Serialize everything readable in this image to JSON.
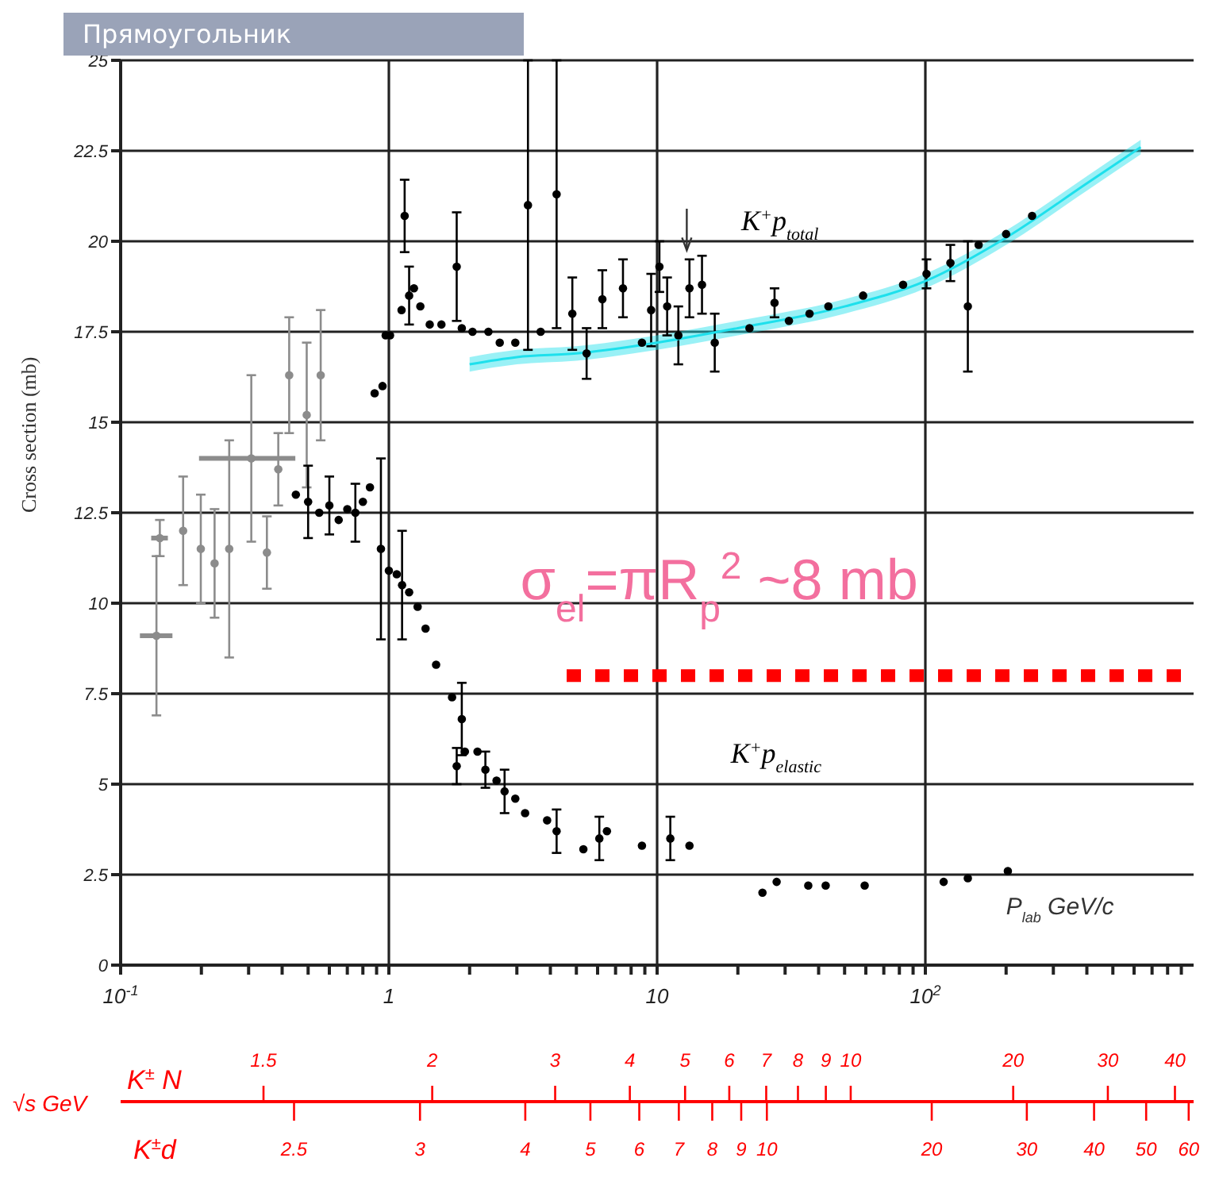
{
  "chart_data": {
    "type": "scatter",
    "ylabel": "Cross section (mb)",
    "xlabel": "P$_{lab}$ GeV/c",
    "log": "x",
    "grid": true,
    "marker": "circle",
    "xlim": [
      0.1,
      1000
    ],
    "ylim": [
      0,
      25
    ],
    "xticks": [
      {
        "value": 0.1,
        "label": "10$^{-1}$"
      },
      {
        "value": 0.2,
        "label": null
      },
      {
        "value": 0.3,
        "label": null
      },
      {
        "value": 0.4,
        "label": null
      },
      {
        "value": 0.5,
        "label": null
      },
      {
        "value": 0.6,
        "label": null
      },
      {
        "value": 0.7,
        "label": null
      },
      {
        "value": 0.8,
        "label": null
      },
      {
        "value": 0.9,
        "label": null
      },
      1,
      {
        "value": 2,
        "label": null
      },
      {
        "value": 3,
        "label": null
      },
      {
        "value": 4,
        "label": null
      },
      {
        "value": 5,
        "label": null
      },
      {
        "value": 6,
        "label": null
      },
      {
        "value": 7,
        "label": null
      },
      {
        "value": 8,
        "label": null
      },
      {
        "value": 9,
        "label": null
      },
      10,
      {
        "value": 20,
        "label": null
      },
      {
        "value": 30,
        "label": null
      },
      {
        "value": 40,
        "label": null
      },
      {
        "value": 50,
        "label": null
      },
      {
        "value": 60,
        "label": null
      },
      {
        "value": 70,
        "label": null
      },
      {
        "value": 80,
        "label": null
      },
      {
        "value": 90,
        "label": null
      },
      {
        "value": 100,
        "label": "10$^{2}$"
      },
      {
        "value": 200,
        "label": null
      },
      {
        "value": 300,
        "label": null
      },
      {
        "value": 400,
        "label": null
      },
      {
        "value": 500,
        "label": null
      },
      {
        "value": 600,
        "label": null
      },
      {
        "value": 700,
        "label": null
      },
      {
        "value": 800,
        "label": null
      },
      {
        "value": 900,
        "label": null
      }
    ],
    "yticks": [
      0,
      2.5,
      5,
      7.5,
      10,
      12.5,
      15,
      17.5,
      20,
      22.5,
      25
    ],
    "annotations": [
      "Прямоугольник",
      "√s GeV",
      "σ$_{el}$=πR$_{p}$$^{2}$ ~8 mb",
      "K$^{±}$ N",
      "1.5",
      "2",
      "3",
      "4",
      "5",
      "6",
      "7",
      "8",
      "9",
      "10",
      "20",
      "30",
      "40",
      "K$^{±}$d",
      "2.5",
      "3",
      "4",
      "5",
      "6",
      "7",
      "8",
      "9",
      "10",
      "20",
      "30",
      "40",
      "50",
      "60"
    ],
    "series": [
      {
        "color": "#8c8c8c",
        "x": [
          0.136,
          0.14,
          0.171,
          0.199,
          0.224,
          0.254,
          0.307,
          0.351,
          0.387,
          0.425,
          0.494,
          0.557
        ],
        "values": [
          9.1,
          11.8,
          12.0,
          11.5,
          11.1,
          11.5,
          14.0,
          11.4,
          13.7,
          16.3,
          15.2,
          16.3
        ],
        "errors": [
          2.2,
          0.5,
          1.5,
          1.5,
          1.5,
          3,
          2.3,
          1,
          1,
          1.6,
          2,
          1.8
        ],
        "xerrors": [
          [
            0.118,
            0.156
          ],
          [
            0.13,
            0.15
          ],
          null,
          null,
          null,
          null,
          [
            0.196,
            0.448
          ],
          null,
          null,
          null,
          null,
          null
        ]
      },
      {
        "name": "K$^{+}$p$_{total}$",
        "color": "#000000",
        "x": [
          0.45,
          0.5,
          0.55,
          0.6,
          0.65,
          0.7,
          0.75,
          0.8,
          0.85,
          0.885,
          0.947,
          0.973,
          1.01,
          1.115,
          1.145,
          1.19,
          1.24,
          1.31,
          1.42,
          1.57,
          1.79,
          1.87,
          2.05,
          2.35,
          2.59,
          2.96,
          3.3,
          3.68,
          4.22,
          4.83,
          5.46,
          6.25,
          7.46,
          8.78,
          9.5,
          10.2,
          10.9,
          12.0,
          13.2,
          14.7,
          16.4,
          22.1,
          27.4,
          31.0,
          37.0,
          43.5,
          58.6,
          82.6,
          101,
          124,
          144,
          158,
          200,
          250
        ],
        "values": [
          13.0,
          12.8,
          12.5,
          12.7,
          12.3,
          12.6,
          12.5,
          12.8,
          13.2,
          15.8,
          16.0,
          17.4,
          17.4,
          18.1,
          20.7,
          18.5,
          18.7,
          18.2,
          17.7,
          17.7,
          19.3,
          17.6,
          17.5,
          17.5,
          17.2,
          17.2,
          21.0,
          17.5,
          21.3,
          18.0,
          16.9,
          18.4,
          18.7,
          17.2,
          18.1,
          19.3,
          18.2,
          17.4,
          18.7,
          18.8,
          17.2,
          17.6,
          18.3,
          17.8,
          18.0,
          18.2,
          18.5,
          18.8,
          19.1,
          19.4,
          18.2,
          19.9,
          20.2,
          20.7
        ],
        "errors": [
          null,
          1,
          null,
          0.8,
          null,
          null,
          0.8,
          null,
          null,
          null,
          null,
          null,
          null,
          null,
          1,
          0.8,
          null,
          null,
          null,
          null,
          1.5,
          null,
          null,
          null,
          null,
          null,
          4,
          null,
          3.7,
          1,
          0.7,
          0.8,
          0.8,
          null,
          1,
          0.7,
          0.8,
          0.8,
          0.8,
          0.8,
          0.8,
          null,
          0.4,
          null,
          null,
          null,
          null,
          null,
          0.4,
          0.5,
          1.8,
          null,
          null,
          null
        ]
      },
      {
        "name": "K$^{+}$p$_{elastic}$",
        "color": "#000000",
        "x": [
          0.934,
          1.0,
          1.07,
          1.12,
          1.19,
          1.28,
          1.37,
          1.5,
          1.72,
          1.87,
          1.79,
          1.92,
          2.14,
          2.29,
          2.52,
          2.7,
          2.96,
          3.22,
          3.89,
          4.22,
          5.31,
          6.09,
          6.5,
          8.78,
          11.2,
          13.2,
          24.7,
          27.9,
          36.6,
          42.5,
          59.4,
          117,
          144,
          203
        ],
        "values": [
          11.5,
          10.9,
          10.8,
          10.5,
          10.3,
          9.9,
          9.3,
          8.3,
          7.4,
          6.8,
          5.5,
          5.9,
          5.9,
          5.4,
          5.1,
          4.8,
          4.6,
          4.2,
          4.0,
          3.7,
          3.2,
          3.5,
          3.7,
          3.3,
          3.5,
          3.3,
          2.0,
          2.3,
          2.2,
          2.2,
          2.2,
          2.3,
          2.4,
          2.6
        ],
        "errors": [
          2.5,
          null,
          null,
          1.5,
          null,
          null,
          null,
          null,
          null,
          1,
          0.5,
          null,
          null,
          0.5,
          null,
          0.6,
          null,
          null,
          null,
          0.6,
          null,
          0.6,
          null,
          null,
          0.6,
          null,
          null,
          null,
          null,
          null,
          null,
          null,
          null,
          null
        ]
      },
      {
        "type": "line",
        "color": "#1ee0ec",
        "marker": "none",
        "x": [
          2,
          3,
          5,
          10,
          20,
          50,
          100,
          200,
          400,
          635
        ],
        "values": [
          16.6,
          16.8,
          16.9,
          17.2,
          17.6,
          18.2,
          18.9,
          20.1,
          21.6,
          22.6
        ],
        "lower": [
          16.4,
          16.6,
          16.7,
          17.0,
          17.4,
          18.0,
          18.7,
          19.9,
          21.4,
          22.4
        ],
        "upper": [
          16.8,
          17.0,
          17.1,
          17.4,
          17.8,
          18.4,
          19.1,
          20.3,
          21.8,
          22.8
        ]
      },
      {
        "type": "line",
        "color": "#ff0000",
        "marker": "none",
        "line_style": "dotted",
        "x": [
          4.6,
          1000
        ],
        "values": [
          8,
          8
        ]
      }
    ]
  }
}
